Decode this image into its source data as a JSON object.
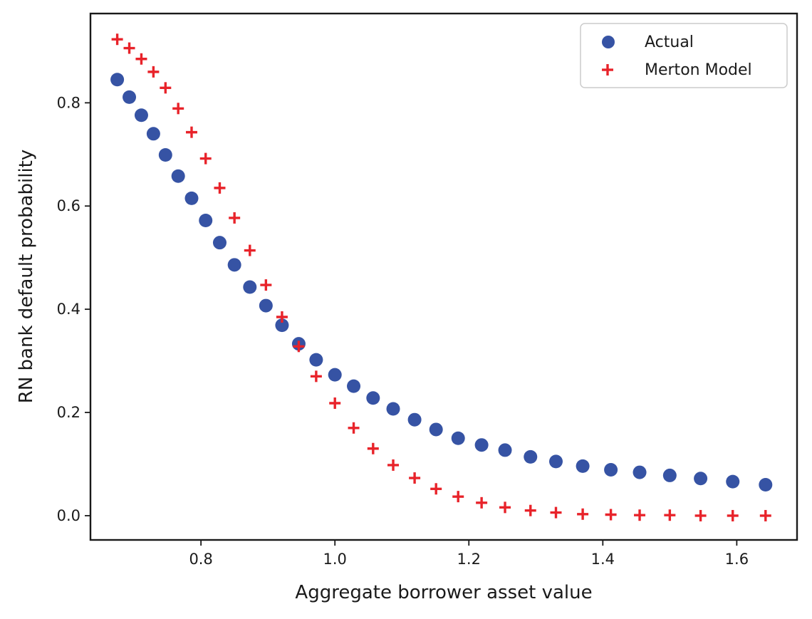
{
  "chart_data": {
    "type": "scatter",
    "title": "",
    "xlabel": "Aggregate borrower asset value",
    "ylabel": "RN bank default probability",
    "xlim": [
      0.635,
      1.69
    ],
    "ylim": [
      -0.047,
      0.973
    ],
    "xticks": [
      {
        "value": 0.8,
        "label": "0.8"
      },
      {
        "value": 1.0,
        "label": "1.0"
      },
      {
        "value": 1.2,
        "label": "1.2"
      },
      {
        "value": 1.4,
        "label": "1.4"
      },
      {
        "value": 1.6,
        "label": "1.6"
      }
    ],
    "yticks": [
      {
        "value": 0.0,
        "label": "0.0"
      },
      {
        "value": 0.2,
        "label": "0.2"
      },
      {
        "value": 0.4,
        "label": "0.4"
      },
      {
        "value": 0.6,
        "label": "0.6"
      },
      {
        "value": 0.8,
        "label": "0.8"
      }
    ],
    "grid": false,
    "legend_position": "top-right",
    "series": [
      {
        "name": "Actual",
        "marker": "circle",
        "color": "#3653a4",
        "points": [
          [
            0.675,
            0.845
          ],
          [
            0.693,
            0.811
          ],
          [
            0.711,
            0.776
          ],
          [
            0.729,
            0.74
          ],
          [
            0.747,
            0.699
          ],
          [
            0.766,
            0.658
          ],
          [
            0.786,
            0.615
          ],
          [
            0.807,
            0.572
          ],
          [
            0.828,
            0.529
          ],
          [
            0.85,
            0.486
          ],
          [
            0.873,
            0.443
          ],
          [
            0.897,
            0.407
          ],
          [
            0.921,
            0.369
          ],
          [
            0.946,
            0.333
          ],
          [
            0.972,
            0.302
          ],
          [
            1.0,
            0.273
          ],
          [
            1.028,
            0.251
          ],
          [
            1.057,
            0.228
          ],
          [
            1.087,
            0.207
          ],
          [
            1.119,
            0.186
          ],
          [
            1.151,
            0.167
          ],
          [
            1.184,
            0.15
          ],
          [
            1.219,
            0.137
          ],
          [
            1.254,
            0.127
          ],
          [
            1.292,
            0.114
          ],
          [
            1.33,
            0.105
          ],
          [
            1.37,
            0.096
          ],
          [
            1.412,
            0.089
          ],
          [
            1.455,
            0.084
          ],
          [
            1.5,
            0.078
          ],
          [
            1.546,
            0.072
          ],
          [
            1.594,
            0.066
          ],
          [
            1.643,
            0.06
          ]
        ]
      },
      {
        "name": "Merton Model",
        "marker": "plus",
        "color": "#e8232a",
        "points": [
          [
            0.675,
            0.923
          ],
          [
            0.693,
            0.906
          ],
          [
            0.711,
            0.885
          ],
          [
            0.729,
            0.86
          ],
          [
            0.747,
            0.829
          ],
          [
            0.766,
            0.789
          ],
          [
            0.786,
            0.743
          ],
          [
            0.807,
            0.692
          ],
          [
            0.828,
            0.635
          ],
          [
            0.85,
            0.577
          ],
          [
            0.873,
            0.514
          ],
          [
            0.897,
            0.447
          ],
          [
            0.921,
            0.385
          ],
          [
            0.946,
            0.328
          ],
          [
            0.972,
            0.27
          ],
          [
            1.0,
            0.218
          ],
          [
            1.028,
            0.17
          ],
          [
            1.057,
            0.13
          ],
          [
            1.087,
            0.098
          ],
          [
            1.119,
            0.073
          ],
          [
            1.151,
            0.052
          ],
          [
            1.184,
            0.037
          ],
          [
            1.219,
            0.025
          ],
          [
            1.254,
            0.016
          ],
          [
            1.292,
            0.01
          ],
          [
            1.33,
            0.006
          ],
          [
            1.37,
            0.003
          ],
          [
            1.412,
            0.002
          ],
          [
            1.455,
            0.001
          ],
          [
            1.5,
            0.001
          ],
          [
            1.546,
            0.0
          ],
          [
            1.594,
            0.0
          ],
          [
            1.643,
            0.0
          ]
        ]
      }
    ]
  }
}
